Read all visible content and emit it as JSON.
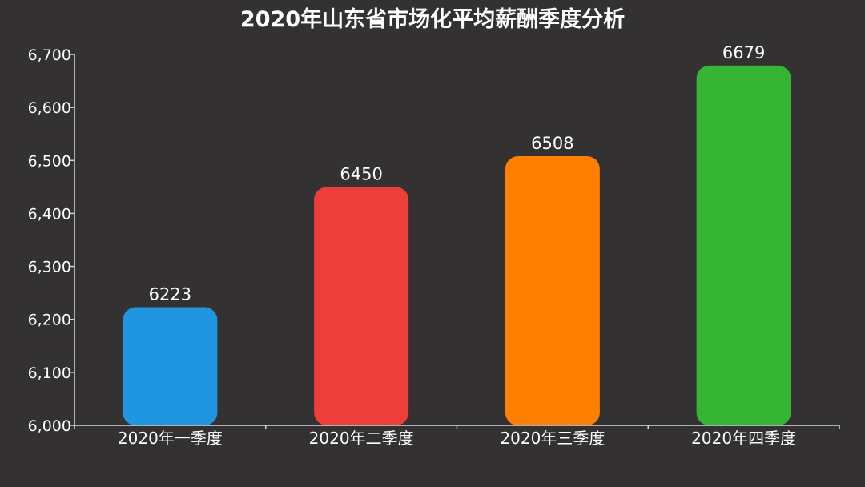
{
  "chart_data": {
    "type": "bar",
    "title": "2020年山东省市场化平均薪酬季度分析",
    "categories": [
      "2020年一季度",
      "2020年二季度",
      "2020年三季度",
      "2020年四季度"
    ],
    "values": [
      6223,
      6450,
      6508,
      6679
    ],
    "data_labels": [
      "6223",
      "6450",
      "6508",
      "6679"
    ],
    "colors": [
      "#2196E0",
      "#EE3E3B",
      "#FF7F00",
      "#36B434"
    ],
    "ylim": [
      6000,
      6700
    ],
    "yticks": [
      6000,
      6100,
      6200,
      6300,
      6400,
      6500,
      6600,
      6700
    ],
    "ytick_labels": [
      "6,000",
      "6,100",
      "6,200",
      "6,300",
      "6,400",
      "6,500",
      "6,600",
      "6,700"
    ],
    "grid": false,
    "legend": "none",
    "background": "#333132",
    "axis_color": "#D9D9D9"
  }
}
